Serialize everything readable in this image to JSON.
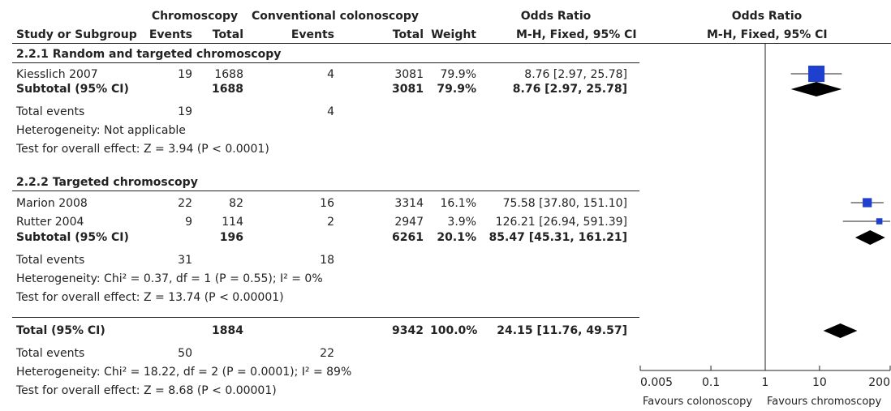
{
  "header": {
    "group_chromo": "Chromoscopy",
    "group_conv": "Conventional colonoscopy",
    "or_title_table": "Odds Ratio",
    "or_title_plot": "Odds Ratio",
    "col_study": "Study or Subgroup",
    "col_events1": "Events",
    "col_total1": "Total",
    "col_events2": "Events",
    "col_total2": "Total",
    "col_weight": "Weight",
    "col_method_table": "M-H, Fixed, 95% CI",
    "col_method_plot": "M-H, Fixed, 95% CI"
  },
  "group1": {
    "title": "2.2.1 Random and targeted chromoscopy",
    "study": {
      "name": "Kiesslich 2007",
      "e1": "19",
      "t1": "1688",
      "e2": "4",
      "t2": "3081",
      "weight": "79.9%",
      "ci": "8.76 [2.97, 25.78]"
    },
    "subtotal": {
      "name": "Subtotal (95% CI)",
      "t1": "1688",
      "t2": "3081",
      "weight": "79.9%",
      "ci": "8.76 [2.97, 25.78]"
    },
    "total_events": {
      "label": "Total events",
      "e1": "19",
      "e2": "4"
    },
    "heterogeneity": "Heterogeneity: Not applicable",
    "overall": "Test for overall effect: Z = 3.94 (P < 0.0001)"
  },
  "group2": {
    "title": "2.2.2 Targeted chromoscopy",
    "studies": [
      {
        "name": "Marion 2008",
        "e1": "22",
        "t1": "82",
        "e2": "16",
        "t2": "3314",
        "weight": "16.1%",
        "ci": "75.58 [37.80, 151.10]"
      },
      {
        "name": "Rutter 2004",
        "e1": "9",
        "t1": "114",
        "e2": "2",
        "t2": "2947",
        "weight": "3.9%",
        "ci": "126.21 [26.94, 591.39]"
      }
    ],
    "subtotal": {
      "name": "Subtotal (95% CI)",
      "t1": "196",
      "t2": "6261",
      "weight": "20.1%",
      "ci": "85.47 [45.31, 161.21]"
    },
    "total_events": {
      "label": "Total events",
      "e1": "31",
      "e2": "18"
    },
    "heterogeneity": "Heterogeneity: Chi² = 0.37, df = 1 (P = 0.55); I² = 0%",
    "overall": "Test for overall effect: Z = 13.74 (P < 0.00001)"
  },
  "total": {
    "name": "Total (95% CI)",
    "t1": "1884",
    "t2": "9342",
    "weight": "100.0%",
    "ci": "24.15 [11.76, 49.57]",
    "total_events": {
      "label": "Total events",
      "e1": "50",
      "e2": "22"
    },
    "heterogeneity": "Heterogeneity: Chi² = 18.22, df = 2 (P = 0.0001); I² = 89%",
    "overall": "Test for overall effect: Z = 8.68 (P < 0.00001)"
  },
  "axis": {
    "ticks": [
      "0.005",
      "0.1",
      "1",
      "10",
      "200"
    ],
    "favours_left": "Favours colonoscopy",
    "favours_right": "Favours chromoscopy"
  },
  "chart_data": {
    "type": "forest",
    "scale": "log",
    "xlim": [
      0.005,
      200
    ],
    "null_value": 1,
    "tick_values": [
      0.005,
      0.1,
      1,
      10,
      200
    ],
    "study_color": "#1f3fcf",
    "diamond_color": "#000000",
    "studies": [
      {
        "name": "Kiesslich 2007",
        "or": 8.76,
        "lo": 2.97,
        "hi": 25.78,
        "weight": 79.9
      },
      {
        "name": "Marion 2008",
        "or": 75.58,
        "lo": 37.8,
        "hi": 151.1,
        "weight": 16.1
      },
      {
        "name": "Rutter 2004",
        "or": 126.21,
        "lo": 26.94,
        "hi": 591.39,
        "weight": 3.9
      }
    ],
    "diamonds": [
      {
        "name": "Subtotal 2.2.1",
        "or": 8.76,
        "lo": 2.97,
        "hi": 25.78
      },
      {
        "name": "Subtotal 2.2.2",
        "or": 85.47,
        "lo": 45.31,
        "hi": 161.21
      },
      {
        "name": "Total",
        "or": 24.15,
        "lo": 11.76,
        "hi": 49.57
      }
    ]
  }
}
